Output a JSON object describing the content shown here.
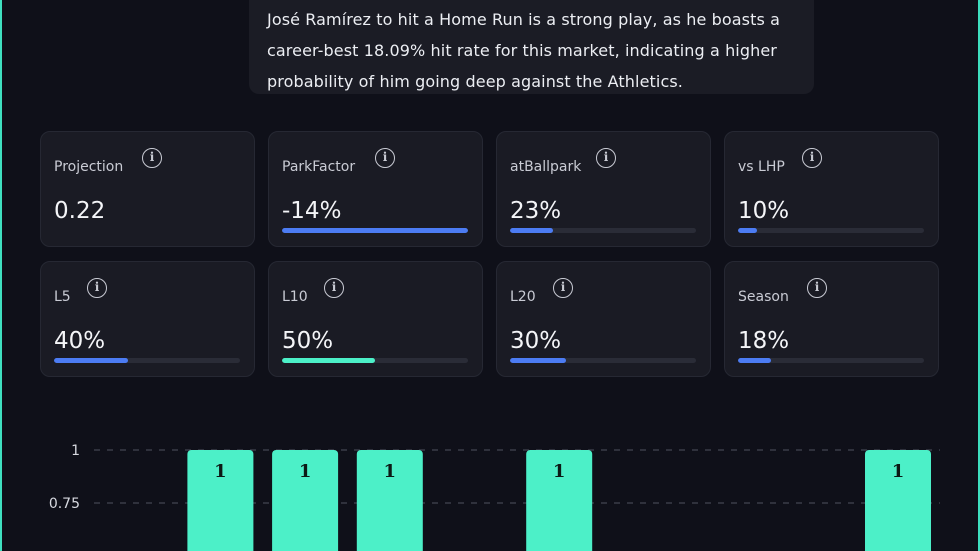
{
  "summary": {
    "text": "José Ramírez to hit a Home Run is a strong play, as he boasts a career-best 18.09% hit rate for this market, indicating a higher probability of him going deep against the Athletics."
  },
  "stats": [
    {
      "label": "Projection",
      "value": "0.22",
      "progress": null
    },
    {
      "label": "ParkFactor",
      "value": "-14%",
      "progress": 1.0
    },
    {
      "label": "atBallpark",
      "value": "23%",
      "progress": 0.23
    },
    {
      "label": "vs LHP",
      "value": "10%",
      "progress": 0.1
    },
    {
      "label": "L5",
      "value": "40%",
      "progress": 0.4
    },
    {
      "label": "L10",
      "value": "50%",
      "progress": 0.5
    },
    {
      "label": "L20",
      "value": "30%",
      "progress": 0.3
    },
    {
      "label": "Season",
      "value": "18%",
      "progress": 0.18
    }
  ],
  "colors": {
    "accent_blue": "#4c7cf3",
    "accent_green": "#4cf0c8"
  },
  "chart_data": {
    "type": "bar",
    "title": "",
    "xlabel": "",
    "ylabel": "",
    "ylim": [
      0,
      1
    ],
    "yticks": [
      1,
      0.75
    ],
    "grid": true,
    "slots": 11,
    "values": [
      0,
      0,
      1,
      1,
      1,
      0,
      1,
      0,
      0,
      0,
      1
    ],
    "data_labels": [
      "",
      "",
      "1",
      "1",
      "1",
      "",
      "1",
      "",
      "",
      "",
      "1"
    ]
  }
}
